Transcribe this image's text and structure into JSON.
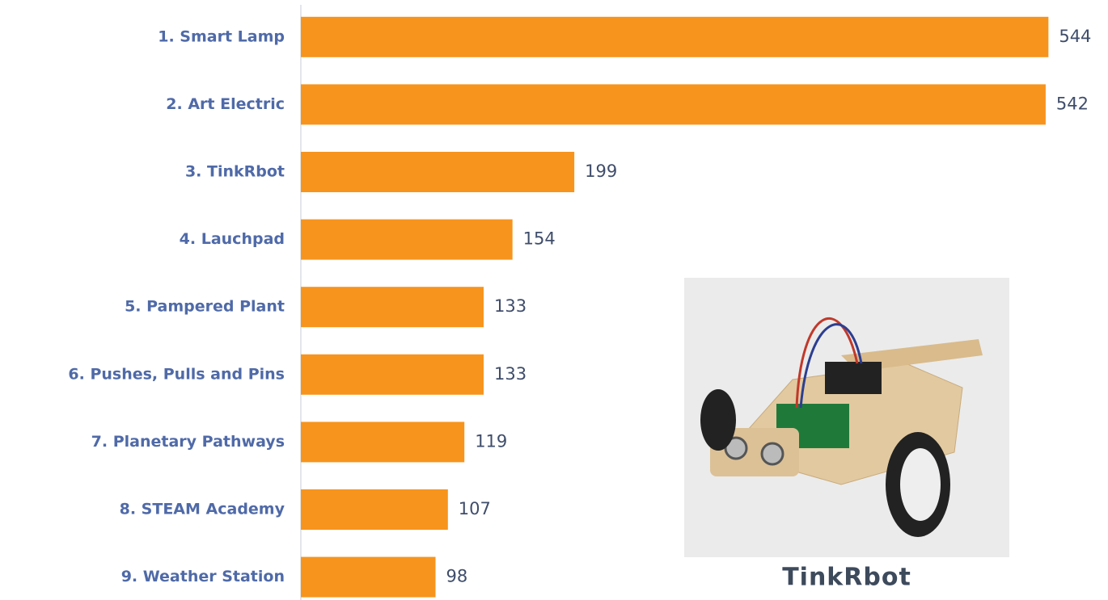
{
  "chart_data": {
    "type": "bar",
    "orientation": "horizontal",
    "categories": [
      "1. Smart Lamp",
      "2. Art Electric",
      "3. TinkRbot",
      "4. Lauchpad",
      "5. Pampered Plant",
      "6. Pushes, Pulls and Pins",
      "7. Planetary Pathways",
      "8. STEAM Academy",
      "9. Weather Station"
    ],
    "values": [
      544,
      542,
      199,
      154,
      133,
      133,
      119,
      107,
      98
    ],
    "color": "#f7941d",
    "xlim": [
      0,
      585
    ]
  },
  "image": {
    "caption": "TinkRbot"
  }
}
